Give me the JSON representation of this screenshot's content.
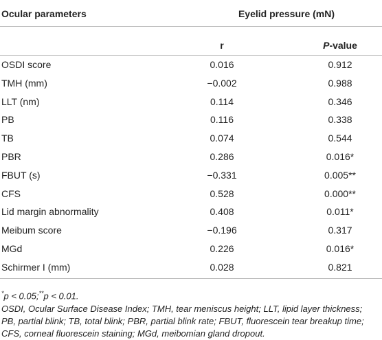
{
  "table": {
    "header": {
      "col1": "Ocular parameters",
      "group": "Eyelid pressure (mN)",
      "r": "r",
      "p_italic": "P",
      "p_rest": "-value"
    },
    "rows": [
      [
        "OSDI score",
        "0.016",
        "0.912"
      ],
      [
        "TMH (mm)",
        "−0.002",
        "0.988"
      ],
      [
        "LLT (nm)",
        "0.114",
        "0.346"
      ],
      [
        "PB",
        "0.116",
        "0.338"
      ],
      [
        "TB",
        "0.074",
        "0.544"
      ],
      [
        "PBR",
        "0.286",
        "0.016*"
      ],
      [
        "FBUT (s)",
        "−0.331",
        "0.005**"
      ],
      [
        "CFS",
        "0.528",
        "0.000**"
      ],
      [
        "Lid margin abnormality",
        "0.408",
        "0.011*"
      ],
      [
        "Meibum score",
        "−0.196",
        "0.317"
      ],
      [
        "MGd",
        "0.226",
        "0.016*"
      ],
      [
        "Schirmer I (mm)",
        "0.028",
        "0.821"
      ]
    ]
  },
  "footnote": {
    "parts": [
      "*",
      "p < 0.05;",
      "**",
      "p < 0.01."
    ],
    "abbreviations": [
      "OSDI, Ocular Surface Disease Index; TMH, tear meniscus height; LLT, lipid layer thickness;",
      "PB, partial blink; TB, total blink; PBR, partial blink rate; FBUT, fluorescein tear breakup time;",
      "CFS, corneal fluorescein staining; MGd, meibomian gland dropout."
    ]
  }
}
